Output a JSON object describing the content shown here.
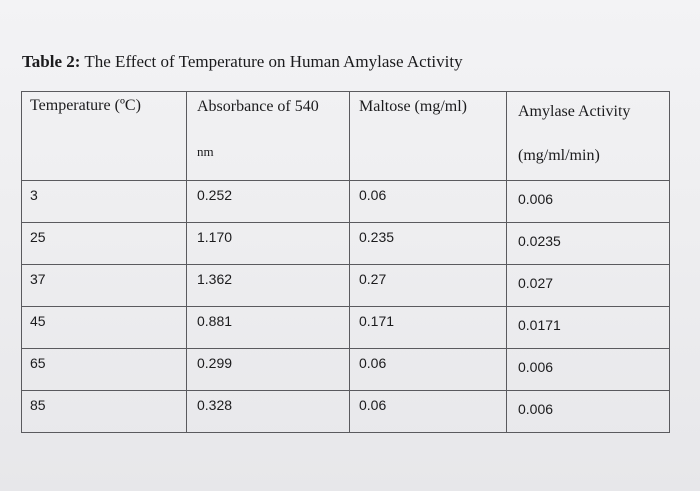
{
  "caption": {
    "label": "Table 2:",
    "text": "The Effect of Temperature on Human Amylase Activity"
  },
  "table": {
    "headers": {
      "temperature": "Temperature (ºC)",
      "absorbance_line1": "Absorbance of 540",
      "absorbance_line2": "nm",
      "maltose": "Maltose (mg/ml)",
      "activity_line1": "Amylase Activity",
      "activity_line2": "(mg/ml/min)"
    },
    "rows": [
      [
        "3",
        "0.252",
        "0.06",
        "0.006"
      ],
      [
        "25",
        "1.170",
        "0.235",
        "0.0235"
      ],
      [
        "37",
        "1.362",
        "0.27",
        "0.027"
      ],
      [
        "45",
        "0.881",
        "0.171",
        "0.0171"
      ],
      [
        "65",
        "0.299",
        "0.06",
        "0.006"
      ],
      [
        "85",
        "0.328",
        "0.06",
        "0.006"
      ]
    ]
  }
}
